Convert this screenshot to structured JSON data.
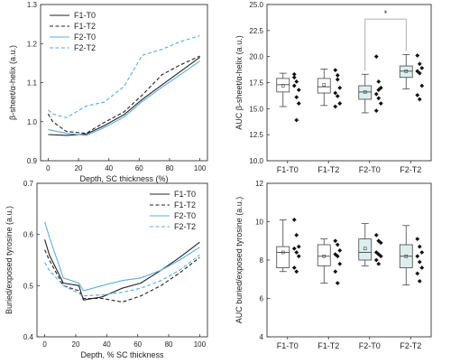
{
  "chart_data": [
    {
      "id": "line-top",
      "type": "line",
      "xlabel": "Depth, SC thickness (%)",
      "ylabel": "β-sheet/α-helix (a.u.)",
      "xlim": [
        -5,
        105
      ],
      "ylim": [
        0.9,
        1.3
      ],
      "xticks": [
        0,
        20,
        40,
        60,
        80,
        100
      ],
      "yticks": [
        0.9,
        1.0,
        1.1,
        1.2,
        1.3
      ],
      "ytick_labels": [
        "0.9",
        "1.0",
        "1.1",
        "1.2",
        "1.3"
      ],
      "legend_position": "top-left",
      "series": [
        {
          "name": "F1-T0",
          "color": "#222222",
          "dash": "solid",
          "x": [
            0,
            12,
            25,
            37,
            50,
            62,
            75,
            87,
            100
          ],
          "y": [
            0.967,
            0.965,
            0.968,
            0.99,
            1.018,
            1.057,
            1.094,
            1.128,
            1.165
          ]
        },
        {
          "name": "F1-T2",
          "color": "#222222",
          "dash": "dashed",
          "x": [
            0,
            3,
            12,
            25,
            37,
            50,
            62,
            75,
            87,
            100
          ],
          "y": [
            1.02,
            1.0,
            0.975,
            0.97,
            0.998,
            1.025,
            1.068,
            1.12,
            1.145,
            1.168
          ]
        },
        {
          "name": "F2-T0",
          "color": "#5aaee0",
          "dash": "solid",
          "x": [
            0,
            12,
            25,
            37,
            50,
            62,
            75,
            87,
            100
          ],
          "y": [
            0.98,
            0.97,
            0.965,
            0.985,
            1.012,
            1.052,
            1.088,
            1.12,
            1.155
          ]
        },
        {
          "name": "F2-T2",
          "color": "#5aaee0",
          "dash": "dashed",
          "x": [
            0,
            3,
            12,
            25,
            37,
            50,
            62,
            75,
            87,
            100
          ],
          "y": [
            1.03,
            1.02,
            1.01,
            1.04,
            1.05,
            1.09,
            1.17,
            1.185,
            1.205,
            1.22
          ]
        }
      ]
    },
    {
      "id": "box-top",
      "type": "box",
      "ylabel": "AUC β-sheet/α-helix (a.u.)",
      "ylim": [
        10.0,
        25.0
      ],
      "yticks": [
        10.0,
        12.5,
        15.0,
        17.5,
        20.0,
        22.5,
        25.0
      ],
      "ytick_labels": [
        "10.0",
        "12.5",
        "15.0",
        "17.5",
        "20.0",
        "22.5",
        "25.0"
      ],
      "categories": [
        "F1-T0",
        "F1-T2",
        "F2-T0",
        "F2-T2"
      ],
      "fills": [
        "#ffffff",
        "#ffffff",
        "#ddeeee",
        "#ddeeee"
      ],
      "boxes": [
        {
          "whisker_low": 15.2,
          "q1": 16.6,
          "median": 17.3,
          "q3": 17.9,
          "whisker_high": 18.4,
          "mean": 17.2,
          "points": [
            18.0,
            17.6,
            16.8,
            17.2,
            16.1,
            15.5,
            18.3,
            13.9
          ]
        },
        {
          "whisker_low": 15.3,
          "q1": 16.5,
          "median": 17.1,
          "q3": 17.9,
          "whisker_high": 18.8,
          "mean": 17.3,
          "points": [
            18.7,
            17.8,
            17.0,
            16.5,
            16.2,
            15.5,
            15.2,
            18.2
          ]
        },
        {
          "whisker_low": 14.6,
          "q1": 15.9,
          "median": 16.6,
          "q3": 17.2,
          "whisker_high": 18.3,
          "mean": 16.6,
          "points": [
            20.0,
            17.6,
            17.0,
            16.4,
            16.0,
            15.5,
            14.8,
            16.8
          ]
        },
        {
          "whisker_low": 16.9,
          "q1": 18.0,
          "median": 18.6,
          "q3": 19.1,
          "whisker_high": 20.2,
          "mean": 18.6,
          "points": [
            20.1,
            19.3,
            18.9,
            18.6,
            18.4,
            17.2,
            16.3,
            15.9
          ]
        }
      ],
      "significance": {
        "from": 2,
        "to": 3,
        "y": 23.6,
        "label": "*"
      }
    },
    {
      "id": "line-bottom",
      "type": "line",
      "xlabel": "Depth, % SC thickness",
      "ylabel": "Buried/exposed tyrosine (a.u.)",
      "xlim": [
        -5,
        105
      ],
      "ylim": [
        0.4,
        0.7
      ],
      "xticks": [
        0,
        20,
        40,
        60,
        80,
        100
      ],
      "yticks": [
        0.4,
        0.5,
        0.6,
        0.7
      ],
      "ytick_labels": [
        "0.4",
        "0.5",
        "0.6",
        "0.7"
      ],
      "legend_position": "top-right",
      "series": [
        {
          "name": "F1-T0",
          "color": "#222222",
          "dash": "solid",
          "x": [
            0,
            3,
            12,
            22,
            25,
            37,
            50,
            62,
            75,
            87,
            100
          ],
          "y": [
            0.59,
            0.56,
            0.505,
            0.5,
            0.472,
            0.478,
            0.495,
            0.505,
            0.53,
            0.555,
            0.585
          ]
        },
        {
          "name": "F1-T2",
          "color": "#222222",
          "dash": "dashed",
          "x": [
            0,
            3,
            12,
            22,
            25,
            37,
            50,
            62,
            75,
            87,
            100
          ],
          "y": [
            0.57,
            0.55,
            0.5,
            0.49,
            0.475,
            0.475,
            0.468,
            0.48,
            0.5,
            0.525,
            0.555
          ]
        },
        {
          "name": "F2-T0",
          "color": "#5aaee0",
          "dash": "solid",
          "x": [
            0,
            3,
            12,
            22,
            25,
            37,
            50,
            62,
            75,
            87,
            100
          ],
          "y": [
            0.625,
            0.595,
            0.515,
            0.505,
            0.49,
            0.5,
            0.51,
            0.515,
            0.53,
            0.55,
            0.575
          ]
        },
        {
          "name": "F2-T2",
          "color": "#5aaee0",
          "dash": "dashed",
          "x": [
            0,
            3,
            12,
            22,
            25,
            37,
            50,
            62,
            75,
            87,
            100
          ],
          "y": [
            0.545,
            0.53,
            0.5,
            0.485,
            0.48,
            0.482,
            0.487,
            0.495,
            0.51,
            0.53,
            0.56
          ]
        }
      ]
    },
    {
      "id": "box-bottom",
      "type": "box",
      "ylabel": "AUC buried/exposed tyrosine (a.u.)",
      "ylim": [
        4,
        12
      ],
      "yticks": [
        4,
        6,
        8,
        10,
        12
      ],
      "ytick_labels": [
        "4",
        "6",
        "8",
        "10",
        "12"
      ],
      "categories": [
        "F1-T0",
        "F1-T2",
        "F2-T0",
        "F2-T2"
      ],
      "fills": [
        "#ffffff",
        "#ffffff",
        "#ddeeee",
        "#ddeeee"
      ],
      "boxes": [
        {
          "whisker_low": 7.4,
          "q1": 7.6,
          "median": 8.4,
          "q3": 8.7,
          "whisker_high": 10.1,
          "mean": 8.4,
          "points": [
            10.1,
            9.3,
            8.7,
            8.6,
            8.4,
            8.2,
            7.6,
            7.4
          ]
        },
        {
          "whisker_low": 6.8,
          "q1": 7.7,
          "median": 8.2,
          "q3": 8.8,
          "whisker_high": 9.1,
          "mean": 8.2,
          "points": [
            9.0,
            8.8,
            8.5,
            8.3,
            8.2,
            7.8,
            7.4,
            6.8
          ]
        },
        {
          "whisker_low": 7.7,
          "q1": 8.0,
          "median": 8.4,
          "q3": 9.1,
          "whisker_high": 9.9,
          "mean": 8.6,
          "points": [
            9.3,
            9.0,
            8.9,
            8.4,
            8.3,
            8.2,
            8.0,
            7.8
          ]
        },
        {
          "whisker_low": 6.7,
          "q1": 7.6,
          "median": 8.2,
          "q3": 8.8,
          "whisker_high": 9.8,
          "mean": 8.2,
          "points": [
            9.1,
            8.7,
            8.4,
            8.2,
            7.9,
            7.6,
            7.3,
            6.9
          ]
        }
      ]
    }
  ]
}
